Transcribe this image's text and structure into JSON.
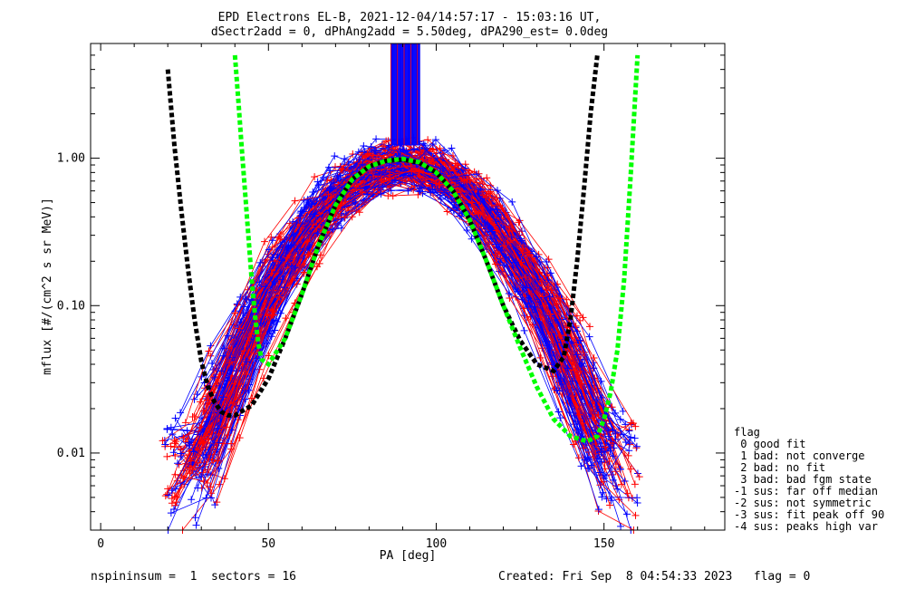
{
  "header": {
    "title": "EPD Electrons EL-B, 2021-12-04/14:57:17 - 15:03:16 UT,",
    "subtitle": "dSectr2add = 0, dPhAng2add = 5.50deg, dPA290_est=    0.0deg"
  },
  "footer": {
    "left": "nspininsum =  1  sectors = 16",
    "right": "Created: Fri Sep  8 04:54:33 2023   flag = 0"
  },
  "legend": {
    "title": "flag",
    "items": [
      " 0 good fit",
      " 1 bad: not converge",
      " 2 bad: no fit",
      " 3 bad: bad fgm state",
      "-1 sus: far off median",
      "-2 sus: not symmetric",
      "-3 sus: fit peak off 90",
      "-4 sus: peaks high var"
    ]
  },
  "chart_data": {
    "type": "line",
    "xlabel": "PA [deg]",
    "ylabel": "mflux [#/(cm^2 s sr MeV)]",
    "xlim": [
      -3,
      186
    ],
    "ylim": [
      0.003,
      6
    ],
    "yscale": "log",
    "xticks": [
      0,
      50,
      100,
      150
    ],
    "xtick_labels": [
      "0",
      "50",
      "100",
      "150"
    ],
    "yticks": [
      0.01,
      0.1,
      1.0
    ],
    "ytick_labels": [
      "0.01",
      "0.10",
      "1.00"
    ],
    "colors": {
      "red": "#ff0000",
      "blue": "#0000ff",
      "black": "#000000",
      "green": "#00ff00"
    },
    "series": [
      {
        "color": "black",
        "style": "dashed",
        "x": [
          20,
          22,
          24,
          26,
          28,
          30,
          32,
          34,
          36,
          38,
          40,
          45,
          50,
          55,
          60,
          65,
          70,
          75,
          80,
          85,
          90,
          95,
          100,
          105,
          110,
          115,
          120,
          125,
          130,
          135,
          138,
          140,
          142,
          144,
          146,
          148
        ],
        "y": [
          4.0,
          1.2,
          0.45,
          0.18,
          0.08,
          0.042,
          0.028,
          0.022,
          0.019,
          0.018,
          0.018,
          0.021,
          0.032,
          0.06,
          0.12,
          0.26,
          0.48,
          0.72,
          0.88,
          0.96,
          0.98,
          0.93,
          0.8,
          0.6,
          0.38,
          0.2,
          0.1,
          0.058,
          0.04,
          0.036,
          0.045,
          0.08,
          0.2,
          0.6,
          2.0,
          5.0
        ]
      },
      {
        "color": "green",
        "style": "dashed",
        "x": [
          40,
          41,
          42,
          43,
          44,
          45,
          46,
          47,
          48,
          50,
          55,
          60,
          65,
          70,
          75,
          80,
          85,
          90,
          95,
          100,
          105,
          110,
          115,
          120,
          125,
          130,
          135,
          140,
          145,
          148,
          150,
          152,
          154,
          156,
          158,
          160
        ],
        "y": [
          5.0,
          2.5,
          1.2,
          0.6,
          0.3,
          0.15,
          0.085,
          0.055,
          0.043,
          0.04,
          0.06,
          0.12,
          0.26,
          0.48,
          0.72,
          0.88,
          0.96,
          0.99,
          0.94,
          0.8,
          0.6,
          0.38,
          0.2,
          0.1,
          0.052,
          0.028,
          0.017,
          0.013,
          0.012,
          0.013,
          0.017,
          0.026,
          0.05,
          0.15,
          0.8,
          5.0
        ]
      }
    ]
  }
}
